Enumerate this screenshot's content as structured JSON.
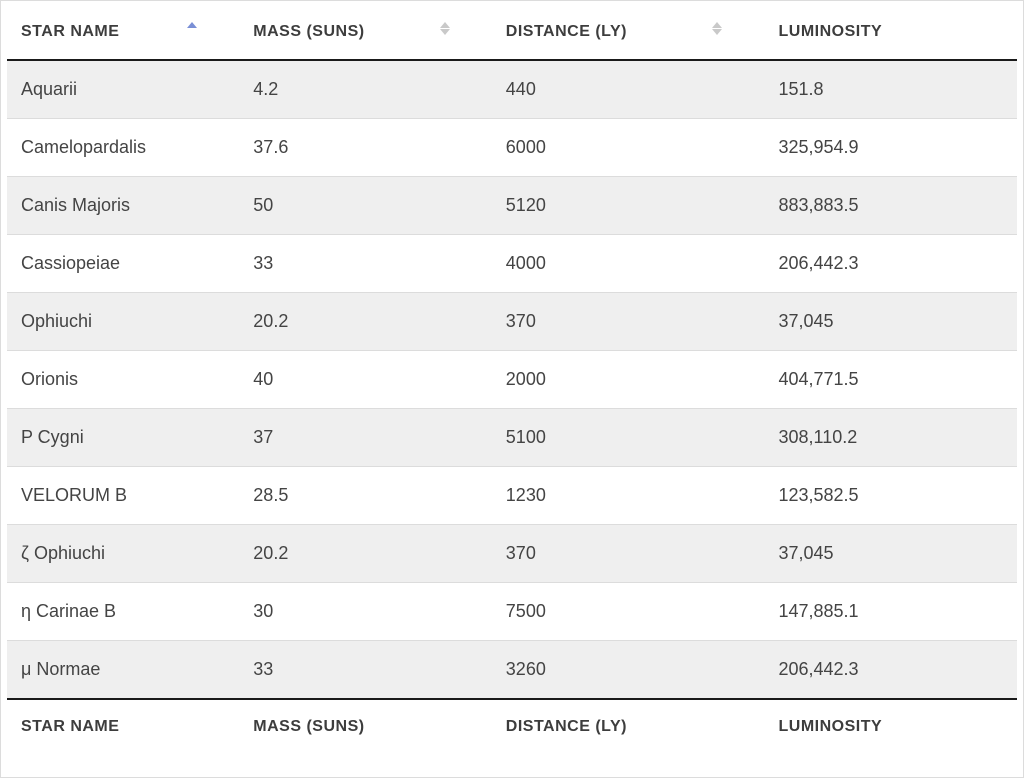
{
  "table": {
    "type": "table",
    "columns": [
      {
        "key": "name",
        "label": "STAR NAME",
        "sortable": true,
        "sorted": "asc"
      },
      {
        "key": "mass",
        "label": "MASS (SUNS)",
        "sortable": true,
        "sorted": "none"
      },
      {
        "key": "distance",
        "label": "DISTANCE (LY)",
        "sortable": true,
        "sorted": "none"
      },
      {
        "key": "luminosity",
        "label": "LUMINOSITY",
        "sortable": false,
        "sorted": "none"
      }
    ],
    "footer_labels": [
      "STAR NAME",
      "MASS (SUNS)",
      "DISTANCE (LY)",
      "LUMINOSITY"
    ],
    "rows": [
      {
        "name": "Aquarii",
        "mass": "4.2",
        "distance": "440",
        "luminosity": "151.8"
      },
      {
        "name": "Camelopardalis",
        "mass": "37.6",
        "distance": "6000",
        "luminosity": "325,954.9"
      },
      {
        "name": "Canis Majoris",
        "mass": "50",
        "distance": "5120",
        "luminosity": "883,883.5"
      },
      {
        "name": "Cassiopeiae",
        "mass": "33",
        "distance": "4000",
        "luminosity": "206,442.3"
      },
      {
        "name": "Ophiuchi",
        "mass": "20.2",
        "distance": "370",
        "luminosity": "37,045"
      },
      {
        "name": "Orionis",
        "mass": "40",
        "distance": "2000",
        "luminosity": "404,771.5"
      },
      {
        "name": "P Cygni",
        "mass": "37",
        "distance": "5100",
        "luminosity": "308,110.2"
      },
      {
        "name": "VELORUM B",
        "mass": "28.5",
        "distance": "1230",
        "luminosity": "123,582.5"
      },
      {
        "name": "ζ Ophiuchi",
        "mass": "20.2",
        "distance": "370",
        "luminosity": "37,045"
      },
      {
        "name": "η Carinae B",
        "mass": "30",
        "distance": "7500",
        "luminosity": "147,885.1"
      },
      {
        "name": "μ Normae",
        "mass": "33",
        "distance": "3260",
        "luminosity": "206,442.3"
      }
    ],
    "style": {
      "header_border_color": "#1a1a1a",
      "row_border_color": "#dcdcdc",
      "stripe_odd_bg": "#efefef",
      "stripe_even_bg": "#ffffff",
      "header_text_color": "#3d3d3d",
      "cell_text_color": "#444444",
      "sort_inactive_color": "#c9c9c9",
      "sort_active_color": "#7a8fd6",
      "header_fontsize_pt": 12,
      "cell_fontsize_pt": 14,
      "container_border_color": "#dcdcdc",
      "background_color": "#ffffff"
    }
  }
}
